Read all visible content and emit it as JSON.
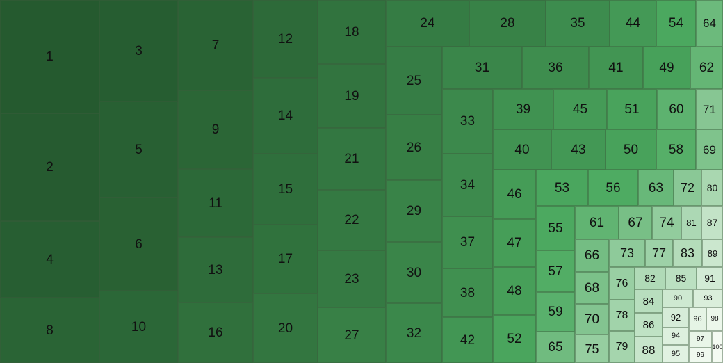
{
  "chart_data": {
    "type": "treemap",
    "title": "",
    "labels": [
      "1",
      "2",
      "3",
      "4",
      "5",
      "6",
      "7",
      "8",
      "9",
      "10",
      "11",
      "12",
      "13",
      "14",
      "15",
      "16",
      "17",
      "18",
      "19",
      "20",
      "21",
      "22",
      "23",
      "24",
      "25",
      "26",
      "27",
      "28",
      "29",
      "30",
      "31",
      "32",
      "33",
      "34",
      "35",
      "36",
      "37",
      "38",
      "39",
      "40",
      "41",
      "42",
      "43",
      "44",
      "45",
      "46",
      "47",
      "48",
      "49",
      "50",
      "51",
      "52",
      "53",
      "54",
      "55",
      "56",
      "57",
      "58",
      "59",
      "60",
      "61",
      "62",
      "63",
      "64",
      "65",
      "66",
      "67",
      "68",
      "69",
      "70",
      "71",
      "72",
      "73",
      "74",
      "75",
      "76",
      "77",
      "78",
      "79",
      "80",
      "81",
      "82",
      "83",
      "84",
      "85",
      "86",
      "87",
      "88",
      "89",
      "90",
      "91",
      "92",
      "93",
      "94",
      "95",
      "96",
      "97",
      "98",
      "99",
      "100"
    ],
    "values": [
      23200,
      22400,
      20300,
      15600,
      19600,
      18100,
      17700,
      14700,
      15600,
      13800,
      13500,
      12800,
      12600,
      12500,
      11800,
      11000,
      11000,
      10600,
      10100,
      10400,
      10000,
      9900,
      9700,
      8600,
      9100,
      9000,
      8900,
      8000,
      8700,
      8300,
      7800,
      7800,
      6900,
      6900,
      6900,
      6500,
      6400,
      5800,
      5300,
      4900,
      5100,
      5200,
      4900,
      4200,
      4600,
      4400,
      4300,
      3900,
      4100,
      4200,
      4100,
      3800,
      4000,
      3500,
      3600,
      3700,
      3400,
      3300,
      3300,
      3300,
      3300,
      3000,
      2900,
      2900,
      2600,
      2700,
      2600,
      2300,
      2300,
      2300,
      2200,
      2300,
      2200,
      2100,
      2100,
      1800,
      1900,
      1800,
      1800,
      1800,
      1600,
      1700,
      1600,
      1600,
      1600,
      1500,
      1400,
      1400,
      1300,
      1300,
      1300,
      1300,
      1200,
      1000,
      1000,
      920,
      940,
      930,
      680,
      290
    ],
    "colors": {
      "darkest": "#255a2f",
      "mid": "#4caa60",
      "lightest": "#f4fbf2"
    }
  }
}
